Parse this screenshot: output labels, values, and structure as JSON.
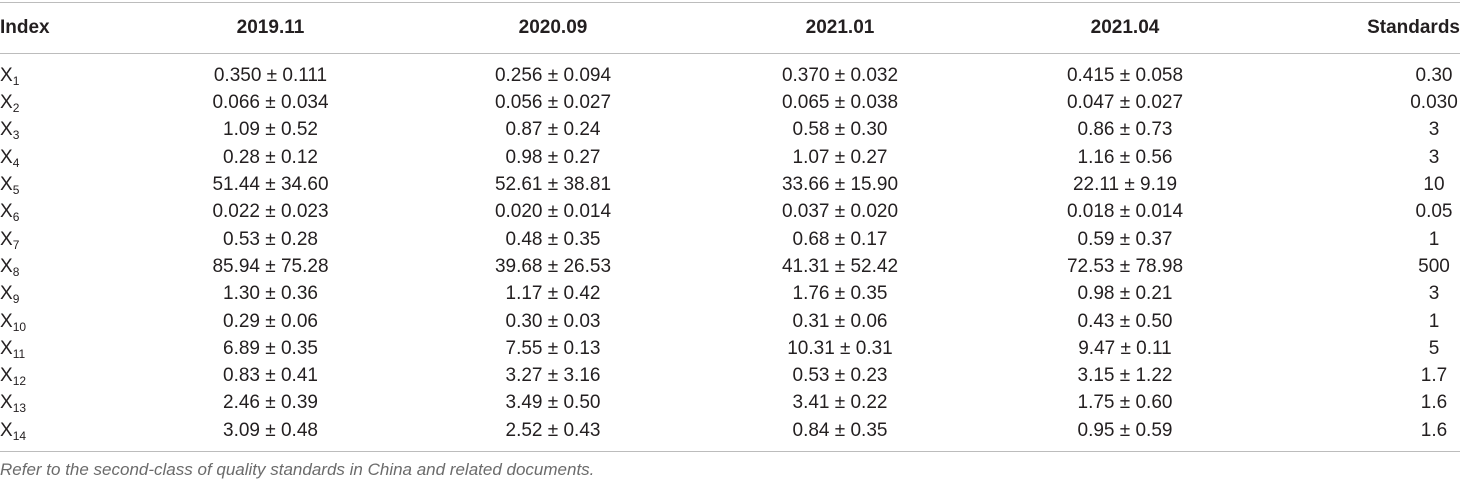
{
  "table": {
    "headers": [
      "Index",
      "2019.11",
      "2020.09",
      "2021.01",
      "2021.04",
      "Standards"
    ],
    "rows": [
      {
        "index": "X",
        "sub": "1",
        "values": [
          "0.350 ± 0.111",
          "0.256 ± 0.094",
          "0.370 ± 0.032",
          "0.415 ± 0.058"
        ],
        "standard": "0.30"
      },
      {
        "index": "X",
        "sub": "2",
        "values": [
          "0.066 ± 0.034",
          "0.056 ± 0.027",
          "0.065 ± 0.038",
          "0.047 ± 0.027"
        ],
        "standard": "0.030"
      },
      {
        "index": "X",
        "sub": "3",
        "values": [
          "1.09 ± 0.52",
          "0.87 ± 0.24",
          "0.58 ± 0.30",
          "0.86 ± 0.73"
        ],
        "standard": "3"
      },
      {
        "index": "X",
        "sub": "4",
        "values": [
          "0.28 ± 0.12",
          "0.98 ± 0.27",
          "1.07 ± 0.27",
          "1.16 ± 0.56"
        ],
        "standard": "3"
      },
      {
        "index": "X",
        "sub": "5",
        "values": [
          "51.44 ± 34.60",
          "52.61 ± 38.81",
          "33.66 ± 15.90",
          "22.11 ± 9.19"
        ],
        "standard": "10"
      },
      {
        "index": "X",
        "sub": "6",
        "values": [
          "0.022 ± 0.023",
          "0.020 ± 0.014",
          "0.037 ± 0.020",
          "0.018 ± 0.014"
        ],
        "standard": "0.05"
      },
      {
        "index": "X",
        "sub": "7",
        "values": [
          "0.53 ± 0.28",
          "0.48 ± 0.35",
          "0.68 ± 0.17",
          "0.59 ± 0.37"
        ],
        "standard": "1"
      },
      {
        "index": "X",
        "sub": "8",
        "values": [
          "85.94 ± 75.28",
          "39.68 ± 26.53",
          "41.31 ± 52.42",
          "72.53 ± 78.98"
        ],
        "standard": "500"
      },
      {
        "index": "X",
        "sub": "9",
        "values": [
          "1.30 ± 0.36",
          "1.17 ± 0.42",
          "1.76 ± 0.35",
          "0.98 ± 0.21"
        ],
        "standard": "3"
      },
      {
        "index": "X",
        "sub": "10",
        "values": [
          "0.29 ± 0.06",
          "0.30 ± 0.03",
          "0.31 ± 0.06",
          "0.43 ± 0.50"
        ],
        "standard": "1"
      },
      {
        "index": "X",
        "sub": "11",
        "values": [
          "6.89 ± 0.35",
          "7.55 ± 0.13",
          "10.31 ± 0.31",
          "9.47 ± 0.11"
        ],
        "standard": "5"
      },
      {
        "index": "X",
        "sub": "12",
        "values": [
          "0.83 ± 0.41",
          "3.27 ± 3.16",
          "0.53 ± 0.23",
          "3.15 ± 1.22"
        ],
        "standard": "1.7"
      },
      {
        "index": "X",
        "sub": "13",
        "values": [
          "2.46 ± 0.39",
          "3.49 ± 0.50",
          "3.41 ± 0.22",
          "1.75 ± 0.60"
        ],
        "standard": "1.6"
      },
      {
        "index": "X",
        "sub": "14",
        "values": [
          "3.09 ± 0.48",
          "2.52 ± 0.43",
          "0.84 ± 0.35",
          "0.95 ± 0.59"
        ],
        "standard": "1.6"
      }
    ]
  },
  "footnote": "Refer to the second-class of quality standards in China and related documents."
}
